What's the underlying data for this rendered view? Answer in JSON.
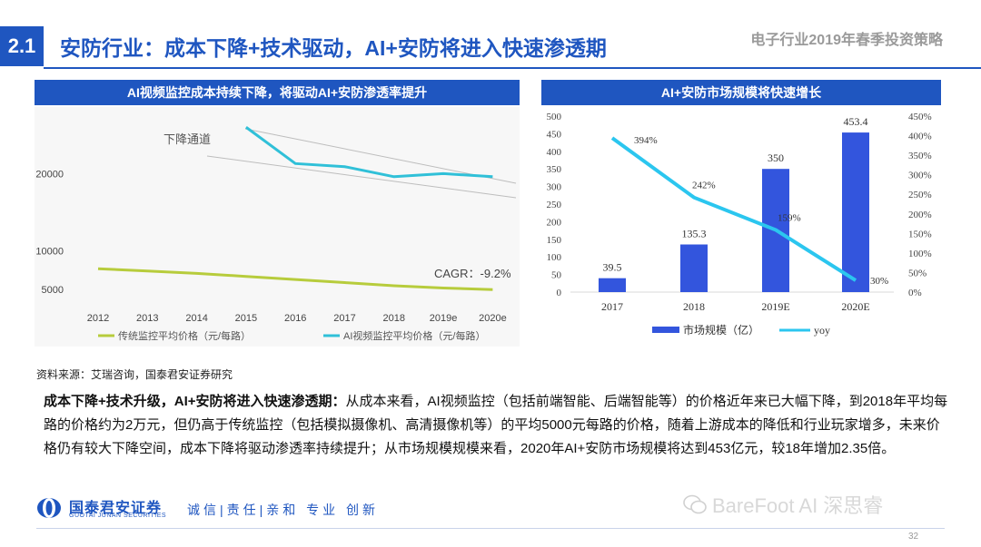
{
  "header": {
    "section_number": "2.1",
    "title": "安防行业：成本下降+技术驱动，AI+安防将进入快速渗透期",
    "report_title": "电子行业2019年春季投资策略"
  },
  "left_chart": {
    "heading": "AI视频监控成本持续下降，将驱动AI+安防渗透率提升",
    "annotation_channel": "下降通道",
    "annotation_cagr": "CAGR：-9.2%",
    "legend": [
      "传统监控平均价格（元/每路）",
      "AI视频监控平均价格（元/每路）"
    ]
  },
  "right_chart": {
    "heading": "AI+安防市场规模将快速增长",
    "legend": [
      "市场规模（亿）",
      "yoy"
    ]
  },
  "chart_data": [
    {
      "type": "line",
      "title": "AI视频监控成本持续下降，将驱动AI+安防渗透率提升",
      "categories": [
        "2012",
        "2013",
        "2014",
        "2015",
        "2016",
        "2017",
        "2018",
        "2019e",
        "2020e"
      ],
      "ylim": [
        3500,
        26500
      ],
      "yticks": [
        5000,
        10000,
        20000
      ],
      "grid": false,
      "legend_position": "bottom",
      "series": [
        {
          "name": "传统监控平均价格（元/每路）",
          "color": "#b7cc3c",
          "values": [
            7700,
            7400,
            7100,
            6700,
            6300,
            5900,
            5500,
            5200,
            5000
          ]
        },
        {
          "name": "AI视频监控平均价格（元/每路）",
          "color": "#30c0d8",
          "values": [
            null,
            null,
            null,
            26000,
            21300,
            20900,
            19600,
            20000,
            19600
          ]
        }
      ]
    },
    {
      "type": "bar",
      "title": "AI+安防市场规模将快速增长",
      "categories": [
        "2017",
        "2018",
        "2019E",
        "2020E"
      ],
      "ylim": [
        0,
        500
      ],
      "yticks": [
        0,
        50,
        100,
        150,
        200,
        250,
        300,
        350,
        400,
        450,
        500
      ],
      "y2lim": [
        0,
        450
      ],
      "y2ticks": [
        "0%",
        "50%",
        "100%",
        "150%",
        "200%",
        "250%",
        "300%",
        "350%",
        "400%",
        "450%"
      ],
      "grid": false,
      "legend_position": "bottom",
      "series": [
        {
          "name": "市场规模（亿）",
          "type": "bar",
          "color": "#3355dd",
          "values": [
            39.5,
            135.3,
            350,
            453.4
          ],
          "labels": [
            "39.5",
            "135.3",
            "350",
            "453.4"
          ]
        },
        {
          "name": "yoy",
          "type": "line",
          "axis": "right",
          "color": "#2bc6ef",
          "values": [
            394,
            242,
            159,
            30
          ],
          "labels": [
            "394%",
            "242%",
            "159%",
            "30%"
          ]
        }
      ]
    }
  ],
  "source": "资料来源：艾瑞咨询，国泰君安证券研究",
  "body": {
    "lead": "成本下降+技术升级，AI+安防将进入快速渗透期：",
    "text": "从成本来看，AI视频监控（包括前端智能、后端智能等）的价格近年来已大幅下降，到2018年平均每路的价格约为2万元，但仍高于传统监控（包括模拟摄像机、高清摄像机等）的平均5000元每路的价格，随着上游成本的降低和行业玩家增多，未来价格仍有较大下降空间，成本下降将驱动渗透率持续提升；从市场规模规模来看，2020年AI+安防市场规模将达到453亿元，较18年增加2.35倍。"
  },
  "footer": {
    "logo_cn": "国泰君安证券",
    "logo_en": "GUOTAI JUNAN SECURITIES",
    "slogan": "诚信|责任|亲和 专业 创新",
    "watermark": "BareFoot AI 深思睿",
    "page_number": "32"
  },
  "colors": {
    "brand_blue": "#1f56c0",
    "bar_blue": "#3355dd",
    "yoy_cyan": "#2bc6ef"
  }
}
